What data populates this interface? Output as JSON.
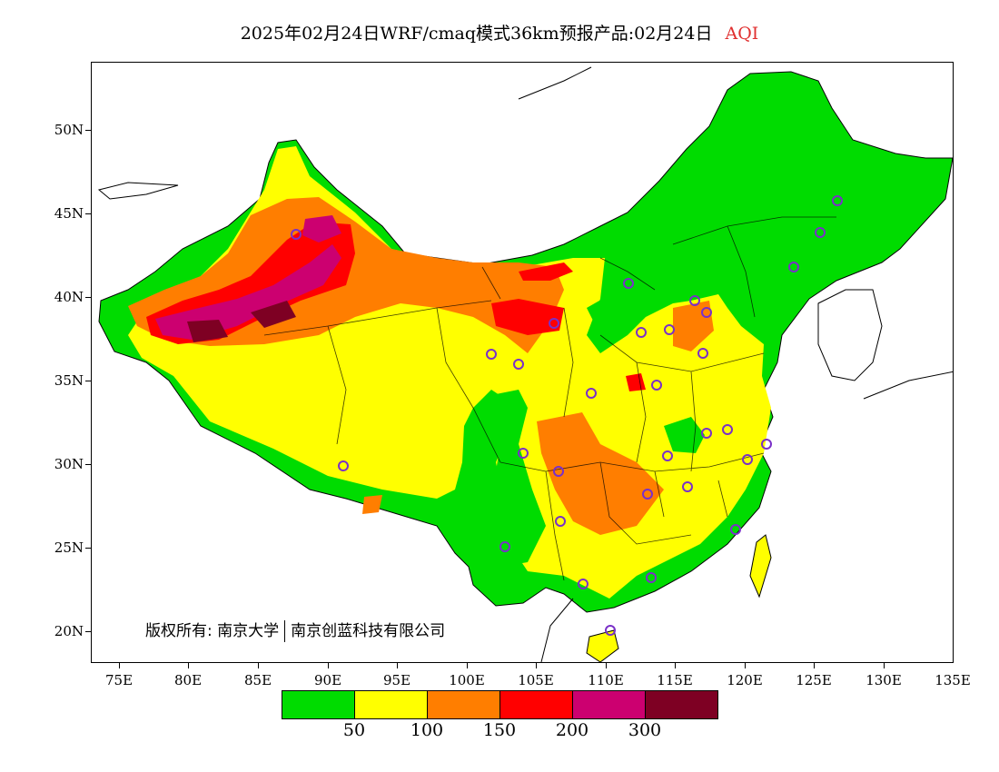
{
  "header": {
    "title": "2025年02月24日WRF/cmaq模式36km预报产品:02月24日",
    "indicator": "AQI"
  },
  "map": {
    "lat_labels": [
      "50N",
      "45N",
      "40N",
      "35N",
      "30N",
      "25N",
      "20N"
    ],
    "lon_labels": [
      "75E",
      "80E",
      "85E",
      "90E",
      "95E",
      "100E",
      "105E",
      "110E",
      "115E",
      "120E",
      "125E",
      "130E",
      "135E"
    ],
    "extent": {
      "lon": [
        73,
        135
      ],
      "lat": [
        18,
        54
      ]
    }
  },
  "copyright": {
    "label": "版权所有:",
    "org1": "南京大学",
    "org2": "南京创蓝科技有限公司"
  },
  "legend": {
    "colors": [
      "#00dc00",
      "#ffff00",
      "#ff7e00",
      "#ff0000",
      "#cc0070",
      "#7e0023"
    ],
    "labels": [
      "50",
      "100",
      "150",
      "200",
      "300"
    ]
  },
  "colors": {
    "good": "#00dc00",
    "moderate": "#ffff00",
    "sensitive": "#ff7e00",
    "unhealthy": "#ff0000",
    "very_unhealthy": "#cc0070",
    "hazardous": "#7e0023",
    "station_marker": "#7a30c8"
  }
}
